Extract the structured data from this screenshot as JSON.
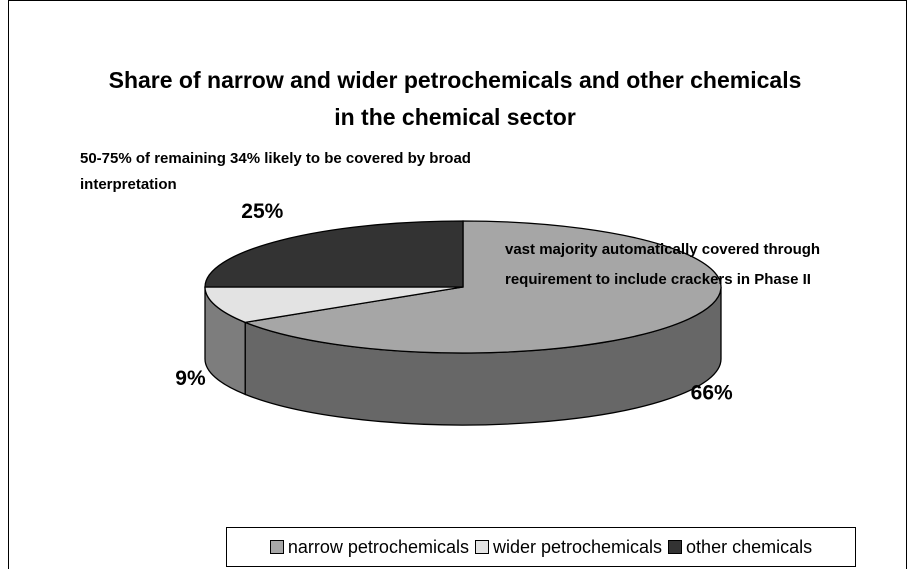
{
  "chart_data": {
    "type": "pie",
    "title": "Share of narrow and wider petrochemicals and other chemicals in the chemical sector",
    "categories": [
      "narrow petrochemicals",
      "wider petrochemicals",
      "other chemicals"
    ],
    "values": [
      66,
      9,
      25
    ],
    "value_labels": [
      "66%",
      "9%",
      "25%"
    ],
    "colors": [
      "#a6a6a6",
      "#e3e3e3",
      "#333333"
    ],
    "annotations": [
      "50-75% of remaining 34% likely to be covered by broad interpretation",
      "vast majority automatically covered through requirement to include crackers in Phase II"
    ],
    "legend": "bottom"
  }
}
